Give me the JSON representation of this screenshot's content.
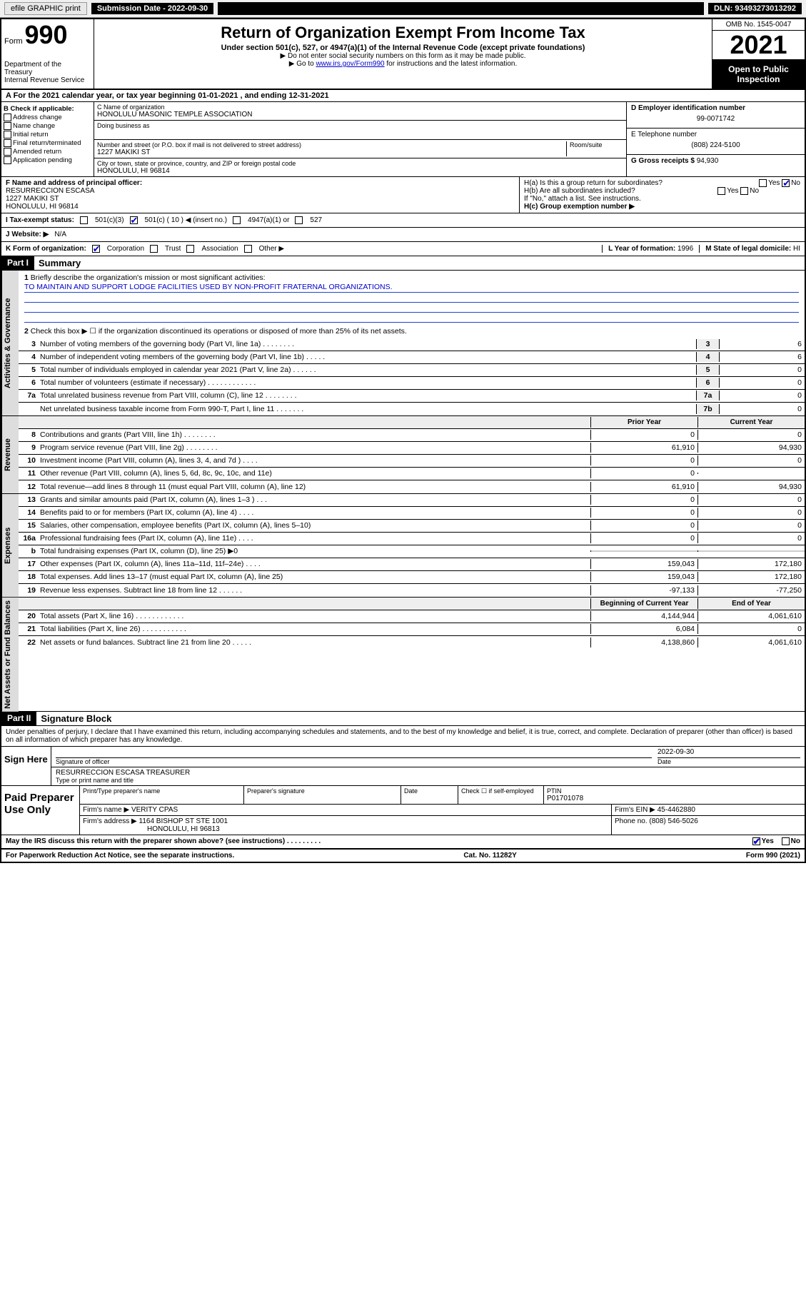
{
  "toolbar": {
    "efile_label": "efile GRAPHIC print",
    "sub_label": "Submission Date - 2022-09-30",
    "dln": "DLN: 93493273013292"
  },
  "header": {
    "form_prefix": "Form",
    "form_number": "990",
    "dept": "Department of the Treasury",
    "irs": "Internal Revenue Service",
    "title": "Return of Organization Exempt From Income Tax",
    "sub1": "Under section 501(c), 527, or 4947(a)(1) of the Internal Revenue Code (except private foundations)",
    "sub2": "▶ Do not enter social security numbers on this form as it may be made public.",
    "sub3_pre": "▶ Go to ",
    "sub3_link": "www.irs.gov/Form990",
    "sub3_post": " for instructions and the latest information.",
    "omb": "OMB No. 1545-0047",
    "year": "2021",
    "open_pub": "Open to Public Inspection"
  },
  "row_a": "A For the 2021 calendar year, or tax year beginning 01-01-2021    , and ending 12-31-2021",
  "col_b": {
    "label": "B Check if applicable:",
    "items": [
      "Address change",
      "Name change",
      "Initial return",
      "Final return/terminated",
      "Amended return",
      "Application pending"
    ]
  },
  "col_c": {
    "name_label": "C Name of organization",
    "name": "HONOLULU MASONIC TEMPLE ASSOCIATION",
    "dba_label": "Doing business as",
    "street_label": "Number and street (or P.O. box if mail is not delivered to street address)",
    "room_label": "Room/suite",
    "street": "1227 MAKIKI ST",
    "city_label": "City or town, state or province, country, and ZIP or foreign postal code",
    "city": "HONOLULU, HI  96814"
  },
  "col_d": {
    "label": "D Employer identification number",
    "value": "99-0071742",
    "e_label": "E Telephone number",
    "e_value": "(808) 224-5100",
    "g_label": "G Gross receipts $",
    "g_value": "94,930"
  },
  "officer": {
    "label": "F Name and address of principal officer:",
    "name": "RESURRECCION ESCASA",
    "street": "1227 MAKIKI ST",
    "city": "HONOLULU, HI  96814"
  },
  "h": {
    "a_label": "H(a) Is this a group return for subordinates?",
    "a_yes": "Yes",
    "a_no": "No",
    "b_label": "H(b) Are all subordinates included?",
    "b_yes": "Yes",
    "b_no": "No",
    "attach": "If \"No,\" attach a list. See instructions.",
    "c_label": "H(c) Group exemption number ▶"
  },
  "status": {
    "label": "I    Tax-exempt status:",
    "c3": "501(c)(3)",
    "c": "501(c) ( 10 ) ◀ (insert no.)",
    "a1": "4947(a)(1) or",
    "s527": "527"
  },
  "website": {
    "label": "J   Website: ▶",
    "value": "N/A"
  },
  "form_org": {
    "label": "K Form of organization:",
    "corp": "Corporation",
    "trust": "Trust",
    "assoc": "Association",
    "other": "Other ▶",
    "l_label": "L Year of formation:",
    "l_value": "1996",
    "m_label": "M State of legal domicile:",
    "m_value": "HI"
  },
  "part1": {
    "header": "Part I",
    "title": "Summary",
    "q1": "Briefly describe the organization's mission or most significant activities:",
    "mission": "TO MAINTAIN AND SUPPORT LODGE FACILITIES USED BY NON-PROFIT FRATERNAL ORGANIZATIONS.",
    "q2": "Check this box ▶ ☐  if the organization discontinued its operations or disposed of more than 25% of its net assets.",
    "lines_gov": [
      {
        "n": "3",
        "d": "Number of voting members of the governing body (Part VI, line 1a)  .  .  .  .  .  .  .  .",
        "b": "3",
        "v": "6"
      },
      {
        "n": "4",
        "d": "Number of independent voting members of the governing body (Part VI, line 1b)  .  .  .  .  .",
        "b": "4",
        "v": "6"
      },
      {
        "n": "5",
        "d": "Total number of individuals employed in calendar year 2021 (Part V, line 2a)  .  .  .  .  .  .",
        "b": "5",
        "v": "0"
      },
      {
        "n": "6",
        "d": "Total number of volunteers (estimate if necessary)  .  .  .  .  .  .  .  .  .  .  .  .",
        "b": "6",
        "v": "0"
      },
      {
        "n": "7a",
        "d": "Total unrelated business revenue from Part VIII, column (C), line 12  .  .  .  .  .  .  .  .",
        "b": "7a",
        "v": "0"
      },
      {
        "n": "",
        "d": "Net unrelated business taxable income from Form 990-T, Part I, line 11  .  .  .  .  .  .  .",
        "b": "7b",
        "v": "0"
      }
    ],
    "prior_label": "Prior Year",
    "current_label": "Current Year",
    "lines_rev": [
      {
        "n": "8",
        "d": "Contributions and grants (Part VIII, line 1h)  .  .  .  .  .  .  .  .",
        "p": "0",
        "c": "0"
      },
      {
        "n": "9",
        "d": "Program service revenue (Part VIII, line 2g)  .  .  .  .  .  .  .  .",
        "p": "61,910",
        "c": "94,930"
      },
      {
        "n": "10",
        "d": "Investment income (Part VIII, column (A), lines 3, 4, and 7d )  .  .  .  .",
        "p": "0",
        "c": "0"
      },
      {
        "n": "11",
        "d": "Other revenue (Part VIII, column (A), lines 5, 6d, 8c, 9c, 10c, and 11e)",
        "p": "0",
        "c": ""
      },
      {
        "n": "12",
        "d": "Total revenue—add lines 8 through 11 (must equal Part VIII, column (A), line 12)",
        "p": "61,910",
        "c": "94,930"
      }
    ],
    "lines_exp": [
      {
        "n": "13",
        "d": "Grants and similar amounts paid (Part IX, column (A), lines 1–3 )  .  .  .",
        "p": "0",
        "c": "0"
      },
      {
        "n": "14",
        "d": "Benefits paid to or for members (Part IX, column (A), line 4)  .  .  .  .",
        "p": "0",
        "c": "0"
      },
      {
        "n": "15",
        "d": "Salaries, other compensation, employee benefits (Part IX, column (A), lines 5–10)",
        "p": "0",
        "c": "0"
      },
      {
        "n": "16a",
        "d": "Professional fundraising fees (Part IX, column (A), line 11e)  .  .  .  .",
        "p": "0",
        "c": "0"
      },
      {
        "n": "b",
        "d": "Total fundraising expenses (Part IX, column (D), line 25) ▶0",
        "p": "",
        "c": "",
        "shaded": true
      },
      {
        "n": "17",
        "d": "Other expenses (Part IX, column (A), lines 11a–11d, 11f–24e)  .  .  .  .",
        "p": "159,043",
        "c": "172,180"
      },
      {
        "n": "18",
        "d": "Total expenses. Add lines 13–17 (must equal Part IX, column (A), line 25)",
        "p": "159,043",
        "c": "172,180"
      },
      {
        "n": "19",
        "d": "Revenue less expenses. Subtract line 18 from line 12  .  .  .  .  .  .",
        "p": "-97,133",
        "c": "-77,250"
      }
    ],
    "begin_label": "Beginning of Current Year",
    "end_label": "End of Year",
    "lines_net": [
      {
        "n": "20",
        "d": "Total assets (Part X, line 16)  .  .  .  .  .  .  .  .  .  .  .  .",
        "p": "4,144,944",
        "c": "4,061,610"
      },
      {
        "n": "21",
        "d": "Total liabilities (Part X, line 26)  .  .  .  .  .  .  .  .  .  .  .",
        "p": "6,084",
        "c": "0"
      },
      {
        "n": "22",
        "d": "Net assets or fund balances. Subtract line 21 from line 20  .  .  .  .  .",
        "p": "4,138,860",
        "c": "4,061,610"
      }
    ],
    "vtab_gov": "Activities & Governance",
    "vtab_rev": "Revenue",
    "vtab_exp": "Expenses",
    "vtab_net": "Net Assets or Fund Balances"
  },
  "part2": {
    "header": "Part II",
    "title": "Signature Block",
    "penalties": "Under penalties of perjury, I declare that I have examined this return, including accompanying schedules and statements, and to the best of my knowledge and belief, it is true, correct, and complete. Declaration of preparer (other than officer) is based on all information of which preparer has any knowledge."
  },
  "sign": {
    "label": "Sign Here",
    "sig_label": "Signature of officer",
    "date_label": "Date",
    "date": "2022-09-30",
    "name": "RESURRECCION ESCASA  TREASURER",
    "name_label": "Type or print name and title"
  },
  "paid": {
    "label": "Paid Preparer Use Only",
    "h1": "Print/Type preparer's name",
    "h2": "Preparer's signature",
    "h3": "Date",
    "h4_check": "Check ☐ if self-employed",
    "h5": "PTIN",
    "ptin": "P01701078",
    "firm_label": "Firm's name    ▶",
    "firm": "VERITY CPAS",
    "ein_label": "Firm's EIN ▶",
    "ein": "45-4462880",
    "addr_label": "Firm's address ▶",
    "addr1": "1164 BISHOP ST STE 1001",
    "addr2": "HONOLULU, HI  96813",
    "phone_label": "Phone no.",
    "phone": "(808) 546-5026"
  },
  "footer": {
    "discuss": "May the IRS discuss this return with the preparer shown above? (see instructions)  .  .  .  .  .  .  .  .  .",
    "yes": "Yes",
    "no": "No",
    "paperwork": "For Paperwork Reduction Act Notice, see the separate instructions.",
    "cat": "Cat. No. 11282Y",
    "form": "Form 990 (2021)"
  }
}
